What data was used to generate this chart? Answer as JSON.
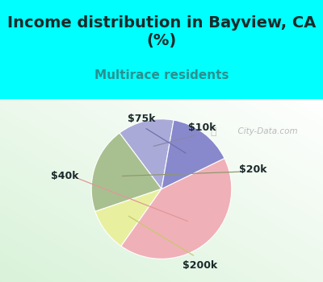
{
  "title": "Income distribution in Bayview, CA\n(%)",
  "subtitle": "Multirace residents",
  "title_fontsize": 14,
  "subtitle_fontsize": 11,
  "title_color": "#1a2a2a",
  "subtitle_color": "#2a9090",
  "background_top": "#00ffff",
  "watermark": "  City-Data.com",
  "labels": [
    "$10k",
    "$20k",
    "$200k",
    "$40k",
    "$75k"
  ],
  "sizes": [
    13,
    20,
    10,
    42,
    15
  ],
  "colors": [
    "#aaaad8",
    "#a8c090",
    "#e8f0a0",
    "#f0b0b8",
    "#8888cc"
  ],
  "startangle": 80,
  "label_fontsize": 9,
  "label_color": "#1a2a2a"
}
